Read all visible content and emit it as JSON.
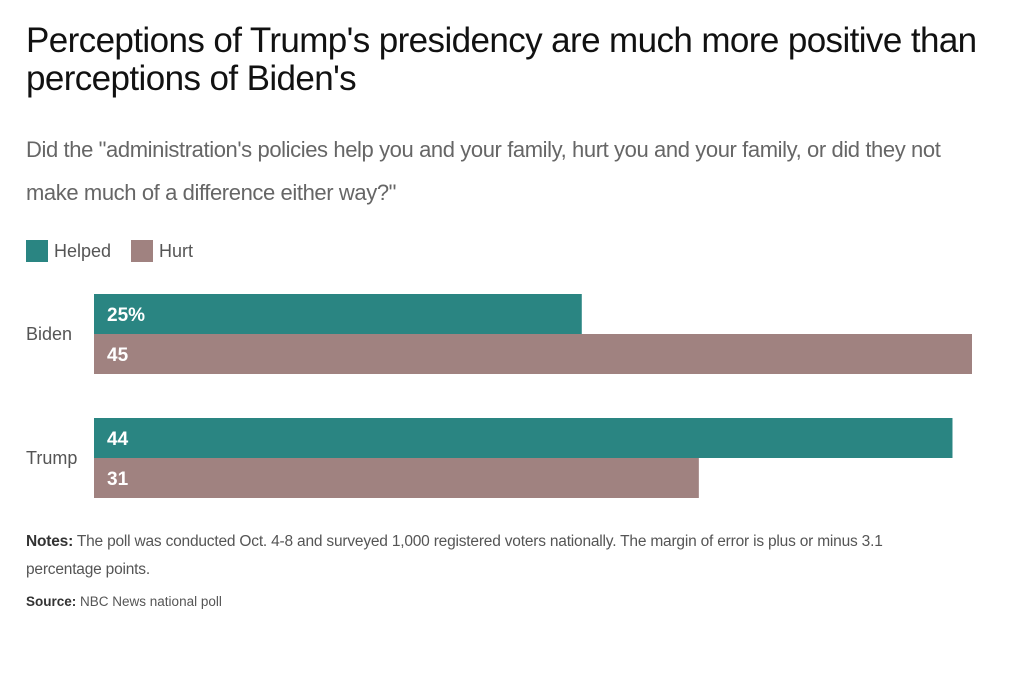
{
  "header": {
    "title": "Perceptions of Trump's presidency are much more positive than perceptions of Biden's",
    "subtitle": "Did the \"administration's policies help you and your family, hurt you and your family, or did they not make much of a difference either way?\""
  },
  "legend": {
    "helped_label": "Helped",
    "hurt_label": "Hurt"
  },
  "colors": {
    "helped": "#2a8582",
    "hurt": "#a08280"
  },
  "chart_data": {
    "type": "bar",
    "orientation": "horizontal",
    "categories": [
      "Biden",
      "Trump"
    ],
    "series": [
      {
        "name": "Helped",
        "values": [
          25,
          44
        ],
        "labels": [
          "25%",
          "44"
        ]
      },
      {
        "name": "Hurt",
        "values": [
          45,
          31
        ],
        "labels": [
          "45",
          "31"
        ]
      }
    ],
    "xlim": [
      0,
      45
    ],
    "grid": false,
    "legend_position": "top-left"
  },
  "footer": {
    "notes_label": "Notes:",
    "notes_text": "The poll was conducted Oct. 4-8 and surveyed 1,000 registered voters nationally. The margin of error is plus or minus 3.1 percentage points.",
    "source_label": "Source:",
    "source_text": "NBC News national poll"
  }
}
